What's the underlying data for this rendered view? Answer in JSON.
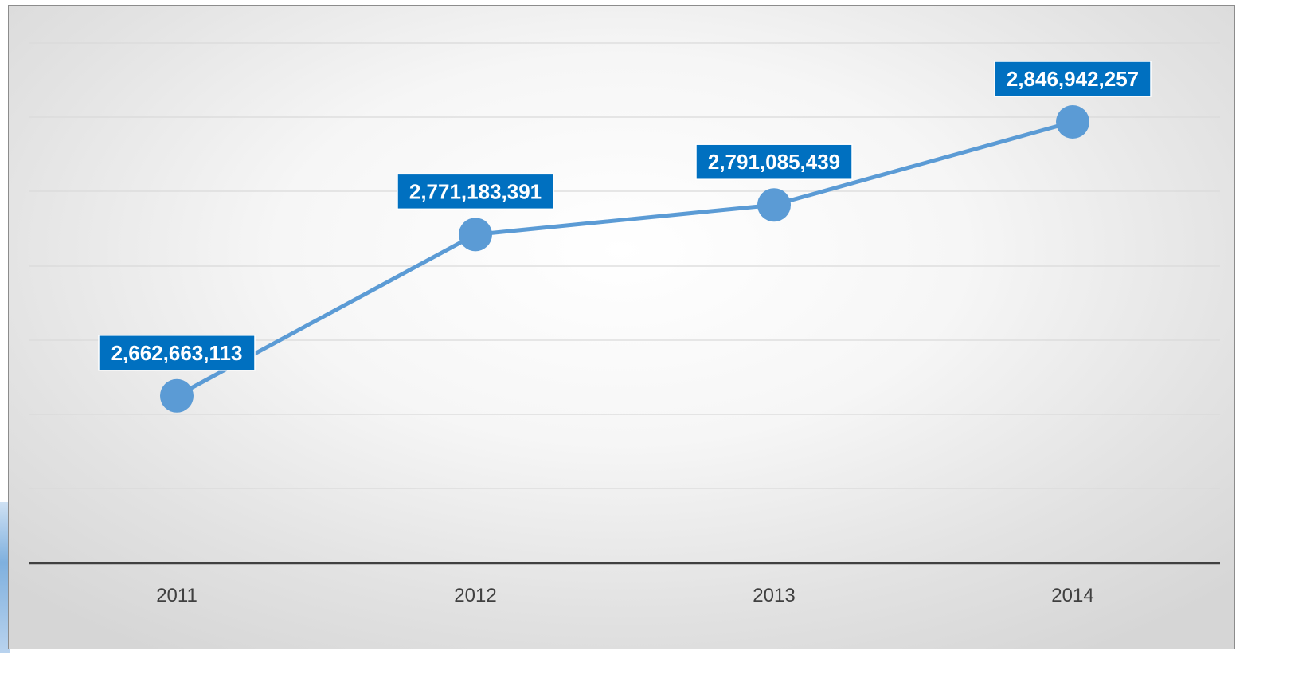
{
  "chart_data": {
    "type": "line",
    "title": "",
    "xlabel": "",
    "ylabel": "",
    "categories": [
      "2011",
      "2012",
      "2013",
      "2014"
    ],
    "series": [
      {
        "values": [
          2662663113,
          2771183391,
          2791085439,
          2846942257
        ],
        "color": "#5b9bd5"
      }
    ],
    "data_labels": [
      "2,662,663,113",
      "2,771,183,391",
      "2,791,085,439",
      "2,846,942,257"
    ],
    "ylim": [
      2550000000,
      2900000000
    ],
    "grid": true,
    "legend": "none",
    "label_fill": "#0070c0",
    "gridline_color": "#d9d9d9",
    "axis_color": "#404040"
  }
}
